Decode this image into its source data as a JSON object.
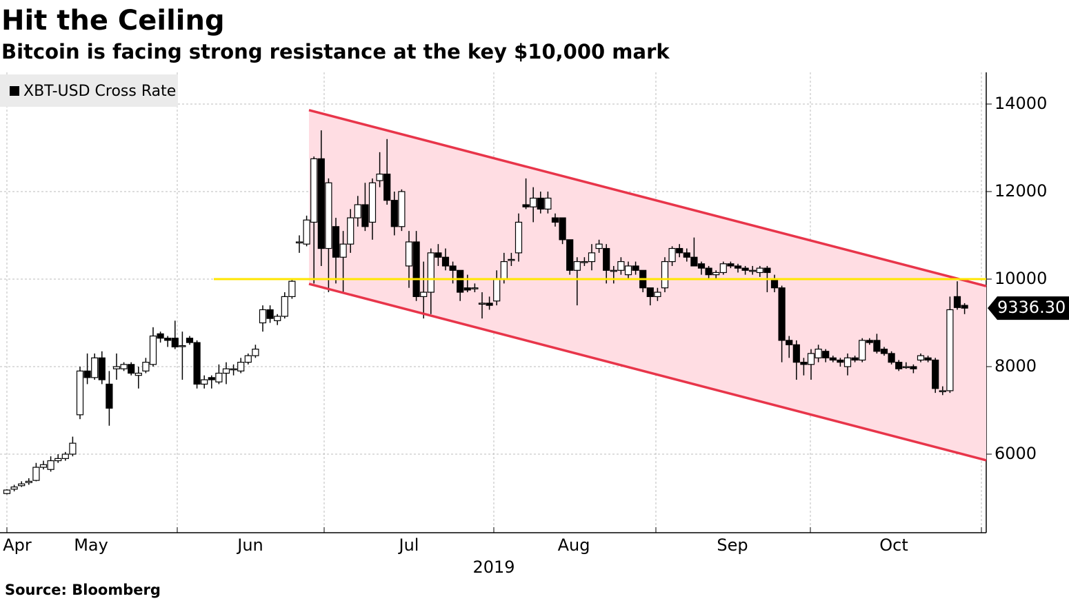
{
  "chart_data": {
    "type": "candlestick",
    "title": "Hit the Ceiling",
    "subtitle": "Bitcoin is facing strong resistance at the key $10,000 mark",
    "source": "Source: Bloomberg",
    "legend": "top-left",
    "grid": true,
    "x_labels": [
      "Apr",
      "May",
      "Jun",
      "Jul",
      "Aug",
      "Sep",
      "Oct"
    ],
    "x_title": "2019",
    "ylim": [
      4205,
      14724
    ],
    "yticks": [
      6000,
      8000,
      10000,
      12000,
      14000
    ],
    "resistance": 10000,
    "channel": {
      "upper": [
        13860,
        9840
      ],
      "lower": [
        9890,
        5860
      ]
    },
    "last_price": {
      "value": 9336.3,
      "label": "9336.30"
    },
    "series": [
      {
        "name": "XBT-USD Cross Rate",
        "color": "#000000",
        "open": [
          5100,
          5200,
          5280,
          5350,
          5400,
          5700,
          5650,
          5850,
          5900,
          6000,
          6900,
          7900,
          7750,
          8200,
          7600,
          7950,
          7950,
          8050,
          7800,
          7900,
          8050,
          8750,
          8650,
          8650,
          8480,
          8650,
          8550,
          7600,
          7750,
          7650,
          7850,
          7950,
          7900,
          8100,
          8250,
          9000,
          9300,
          9050,
          9150,
          9600,
          10850,
          10800,
          11300,
          12750,
          10700,
          11200,
          10500,
          10800,
          11400,
          11700,
          11300,
          12250,
          12400,
          11800,
          11200,
          10300,
          10850,
          9600,
          9700,
          10600,
          10500,
          10300,
          10200,
          9800,
          9800,
          9450,
          9450,
          9500,
          10000,
          10450,
          10600,
          11700,
          11650,
          11850,
          11600,
          11400,
          11400,
          10900,
          10200,
          10400,
          10400,
          10700,
          10700,
          10200,
          10200,
          10100,
          10300,
          10200,
          9800,
          9600,
          9800,
          10400,
          10700,
          10600,
          10500,
          10350,
          10250,
          10100,
          10150,
          10350,
          10300,
          10250,
          10200,
          10150,
          10250,
          10000,
          9800,
          8600,
          8500,
          8100,
          8050,
          8200,
          8350,
          8200,
          8150,
          8000,
          8200,
          8150,
          8600,
          8600,
          8400,
          8300,
          8100,
          8000,
          8000,
          8150,
          8200,
          8150,
          7450,
          7450,
          9600,
          9400
        ],
        "high": [
          5200,
          5300,
          5380,
          5450,
          5800,
          5850,
          5950,
          6000,
          6050,
          6400,
          8000,
          8300,
          8300,
          8350,
          7900,
          8300,
          8100,
          8100,
          8000,
          8200,
          8900,
          8800,
          8700,
          9050,
          8800,
          8700,
          8600,
          7800,
          7800,
          8050,
          8100,
          8050,
          8200,
          8300,
          8500,
          9400,
          9400,
          9200,
          9700,
          10000,
          11000,
          11450,
          12800,
          13400,
          12300,
          11400,
          11100,
          11600,
          11900,
          12200,
          12300,
          12900,
          13200,
          12000,
          12050,
          11100,
          11100,
          10400,
          10700,
          10800,
          10700,
          10400,
          10200,
          10100,
          9900,
          9700,
          9600,
          10200,
          10600,
          10600,
          11500,
          12300,
          12100,
          12000,
          12000,
          11500,
          11400,
          10900,
          10500,
          10500,
          10800,
          10900,
          10800,
          10300,
          10500,
          10400,
          10400,
          10200,
          9800,
          9800,
          10500,
          10750,
          10800,
          10700,
          10950,
          10400,
          10300,
          10200,
          10400,
          10400,
          10350,
          10300,
          10300,
          10300,
          10300,
          10100,
          9850,
          8700,
          8600,
          8200,
          8400,
          8500,
          8400,
          8250,
          8200,
          8300,
          8250,
          8650,
          8650,
          8750,
          8450,
          8350,
          8150,
          8100,
          8050,
          8300,
          8250,
          8200,
          7550,
          9600,
          9950,
          9450
        ],
        "low": [
          5080,
          5150,
          5250,
          5300,
          5380,
          5650,
          5600,
          5800,
          5850,
          5950,
          6800,
          7600,
          7700,
          7600,
          6650,
          7700,
          7900,
          7800,
          7500,
          7850,
          8000,
          8550,
          8450,
          8400,
          7700,
          8500,
          7500,
          7500,
          7500,
          7600,
          7600,
          7800,
          7850,
          8050,
          8200,
          8800,
          9000,
          8950,
          9100,
          9550,
          10600,
          10750,
          9900,
          10300,
          9700,
          9900,
          9700,
          10600,
          11200,
          11100,
          10900,
          12100,
          11700,
          11000,
          11100,
          9800,
          9500,
          9100,
          9200,
          10300,
          10200,
          9900,
          9500,
          9700,
          9700,
          9100,
          9300,
          9400,
          9900,
          10300,
          10400,
          11600,
          11300,
          11500,
          11500,
          11200,
          10800,
          10100,
          9400,
          10300,
          10200,
          10600,
          9900,
          9900,
          10100,
          10000,
          10100,
          9700,
          9400,
          9500,
          9700,
          10300,
          10500,
          10400,
          10300,
          10100,
          10000,
          10000,
          10100,
          10250,
          10150,
          10100,
          10100,
          10050,
          9700,
          9700,
          8100,
          8200,
          7700,
          7800,
          7700,
          8100,
          8100,
          8100,
          8000,
          7800,
          8100,
          8100,
          8500,
          8300,
          8250,
          8050,
          7900,
          7950,
          7850,
          8100,
          8100,
          7400,
          7350,
          7400,
          9300,
          9200
        ],
        "close": [
          5180,
          5250,
          5320,
          5380,
          5700,
          5760,
          5850,
          5900,
          6000,
          6250,
          7900,
          7750,
          8200,
          7700,
          7050,
          8000,
          8050,
          7850,
          7850,
          8100,
          8700,
          8650,
          8600,
          8450,
          8480,
          8550,
          7600,
          7700,
          7700,
          7850,
          7950,
          7950,
          8100,
          8250,
          8400,
          9300,
          9100,
          9150,
          9600,
          9950,
          10850,
          11350,
          12750,
          10700,
          12200,
          10500,
          10800,
          11400,
          11700,
          11200,
          12200,
          12400,
          11800,
          11200,
          12000,
          10850,
          9600,
          9700,
          10600,
          10500,
          10300,
          10200,
          9700,
          9750,
          9800,
          9450,
          9400,
          10000,
          10400,
          10450,
          11300,
          11650,
          11850,
          11600,
          11850,
          11300,
          10900,
          10200,
          10400,
          10400,
          10600,
          10800,
          10200,
          10200,
          10400,
          10300,
          10200,
          9800,
          9600,
          9700,
          10400,
          10700,
          10600,
          10500,
          10300,
          10250,
          10100,
          10150,
          10350,
          10300,
          10250,
          10200,
          10200,
          10250,
          10150,
          9800,
          8600,
          8500,
          8100,
          8050,
          8300,
          8400,
          8200,
          8150,
          8100,
          8200,
          8150,
          8600,
          8550,
          8350,
          8300,
          8100,
          7950,
          8000,
          7950,
          8250,
          8150,
          7500,
          7450,
          9300,
          9350,
          9336.3
        ]
      }
    ]
  }
}
